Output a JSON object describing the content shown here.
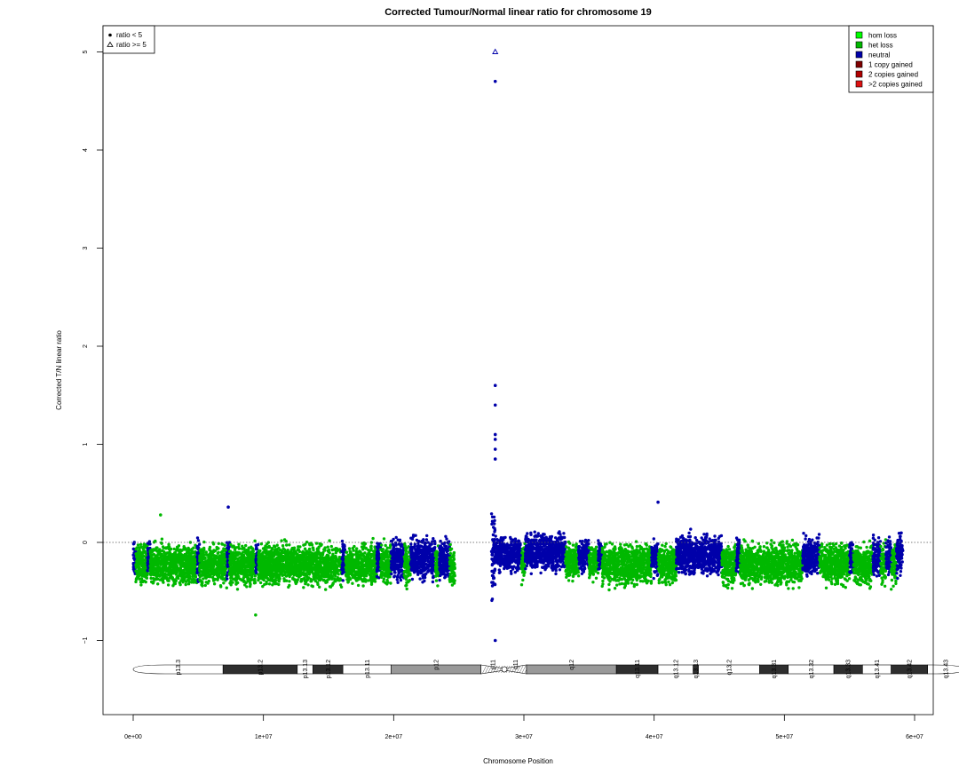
{
  "chart_data": {
    "type": "scatter",
    "title": "Corrected Tumour/Normal linear ratio for chromosome  19",
    "xlabel": "Chromosome Position",
    "ylabel": "Corrected T/N linear ratio",
    "xlim": [
      0,
      61000000
    ],
    "ylim": [
      -1.75,
      5.25
    ],
    "x_ticks": [
      0,
      10000000,
      20000000,
      30000000,
      40000000,
      50000000,
      60000000
    ],
    "x_tick_labels": [
      "0e+00",
      "1e+07",
      "2e+07",
      "3e+07",
      "4e+07",
      "5e+07",
      "6e+07"
    ],
    "y_ticks": [
      -1,
      0,
      1,
      2,
      3,
      4,
      5
    ],
    "y_tick_labels": [
      "−1",
      "0",
      "1",
      "2",
      "3",
      "4",
      "5"
    ],
    "reference_line": 0,
    "shape_legend": {
      "placement": "top-left",
      "entries": [
        {
          "label": "ratio < 5",
          "symbol": "filled-circle"
        },
        {
          "label": "ratio >= 5",
          "symbol": "open-triangle"
        }
      ]
    },
    "state_legend": {
      "placement": "top-right",
      "entries": [
        {
          "label": "hom loss",
          "color": "#00ff00"
        },
        {
          "label": "het loss",
          "color": "#00b800"
        },
        {
          "label": "neutral",
          "color": "#0000aa"
        },
        {
          "label": "1 copy gained",
          "color": "#800000"
        },
        {
          "label": "2 copies gained",
          "color": "#b00000"
        },
        {
          "label": ">2 copies gained",
          "color": "#dd1111"
        }
      ]
    },
    "segments": [
      {
        "start": 0,
        "end": 200000,
        "state": "neutral",
        "low": -0.45,
        "high": 0.08
      },
      {
        "start": 200000,
        "end": 1100000,
        "state": "het loss",
        "low": -0.5,
        "high": 0.05
      },
      {
        "start": 1100000,
        "end": 1300000,
        "state": "neutral",
        "low": -0.45,
        "high": 0.08
      },
      {
        "start": 1300000,
        "end": 4900000,
        "state": "het loss",
        "low": -0.5,
        "high": 0.05
      },
      {
        "start": 4900000,
        "end": 5100000,
        "state": "neutral",
        "low": -0.45,
        "high": 0.08
      },
      {
        "start": 5100000,
        "end": 7200000,
        "state": "het loss",
        "low": -0.5,
        "high": 0.05
      },
      {
        "start": 7200000,
        "end": 7400000,
        "state": "neutral",
        "low": -0.45,
        "high": 0.1
      },
      {
        "start": 7400000,
        "end": 9400000,
        "state": "het loss",
        "low": -0.5,
        "high": 0.05
      },
      {
        "start": 9400000,
        "end": 9600000,
        "state": "neutral",
        "low": -0.45,
        "high": 0.08
      },
      {
        "start": 9600000,
        "end": 16000000,
        "state": "het loss",
        "low": -0.5,
        "high": 0.05
      },
      {
        "start": 16000000,
        "end": 16300000,
        "state": "neutral",
        "low": -0.45,
        "high": 0.08
      },
      {
        "start": 16300000,
        "end": 18700000,
        "state": "het loss",
        "low": -0.5,
        "high": 0.05
      },
      {
        "start": 18700000,
        "end": 19000000,
        "state": "neutral",
        "low": -0.45,
        "high": 0.08
      },
      {
        "start": 19000000,
        "end": 19800000,
        "state": "het loss",
        "low": -0.5,
        "high": 0.05
      },
      {
        "start": 19800000,
        "end": 20800000,
        "state": "neutral",
        "low": -0.45,
        "high": 0.1
      },
      {
        "start": 20800000,
        "end": 21300000,
        "state": "het loss",
        "low": -0.5,
        "high": 0.05
      },
      {
        "start": 21300000,
        "end": 23200000,
        "state": "neutral",
        "low": -0.45,
        "high": 0.12
      },
      {
        "start": 23200000,
        "end": 23500000,
        "state": "het loss",
        "low": -0.5,
        "high": 0.05
      },
      {
        "start": 23500000,
        "end": 24300000,
        "state": "neutral",
        "low": -0.45,
        "high": 0.1
      },
      {
        "start": 24300000,
        "end": 24700000,
        "state": "het loss",
        "low": -0.55,
        "high": 0.0
      },
      {
        "start": 27500000,
        "end": 27800000,
        "state": "neutral",
        "low": -0.7,
        "high": 0.5
      },
      {
        "start": 27800000,
        "end": 28200000,
        "state": "neutral",
        "low": -0.35,
        "high": 0.12
      },
      {
        "start": 28200000,
        "end": 29800000,
        "state": "neutral",
        "low": -0.35,
        "high": 0.12
      },
      {
        "start": 29800000,
        "end": 30100000,
        "state": "het loss",
        "low": -0.45,
        "high": 0.05
      },
      {
        "start": 30100000,
        "end": 33200000,
        "state": "neutral",
        "low": -0.35,
        "high": 0.15
      },
      {
        "start": 33200000,
        "end": 34200000,
        "state": "het loss",
        "low": -0.45,
        "high": 0.05
      },
      {
        "start": 34200000,
        "end": 35000000,
        "state": "neutral",
        "low": -0.35,
        "high": 0.1
      },
      {
        "start": 35000000,
        "end": 35700000,
        "state": "het loss",
        "low": -0.45,
        "high": 0.05
      },
      {
        "start": 35700000,
        "end": 36000000,
        "state": "neutral",
        "low": -0.35,
        "high": 0.1
      },
      {
        "start": 36000000,
        "end": 39800000,
        "state": "het loss",
        "low": -0.5,
        "high": 0.05
      },
      {
        "start": 39800000,
        "end": 40300000,
        "state": "neutral",
        "low": -0.4,
        "high": 0.1
      },
      {
        "start": 40300000,
        "end": 41700000,
        "state": "het loss",
        "low": -0.5,
        "high": 0.05
      },
      {
        "start": 41700000,
        "end": 45200000,
        "state": "neutral",
        "low": -0.4,
        "high": 0.15
      },
      {
        "start": 45200000,
        "end": 46300000,
        "state": "het loss",
        "low": -0.5,
        "high": 0.05
      },
      {
        "start": 46300000,
        "end": 46600000,
        "state": "neutral",
        "low": -0.4,
        "high": 0.1
      },
      {
        "start": 46600000,
        "end": 51400000,
        "state": "het loss",
        "low": -0.5,
        "high": 0.05
      },
      {
        "start": 51400000,
        "end": 52700000,
        "state": "neutral",
        "low": -0.4,
        "high": 0.12
      },
      {
        "start": 52700000,
        "end": 55000000,
        "state": "het loss",
        "low": -0.5,
        "high": 0.05
      },
      {
        "start": 55000000,
        "end": 55300000,
        "state": "neutral",
        "low": -0.4,
        "high": 0.1
      },
      {
        "start": 55300000,
        "end": 56800000,
        "state": "het loss",
        "low": -0.5,
        "high": 0.05
      },
      {
        "start": 56800000,
        "end": 57400000,
        "state": "neutral",
        "low": -0.4,
        "high": 0.12
      },
      {
        "start": 57400000,
        "end": 57800000,
        "state": "het loss",
        "low": -0.5,
        "high": 0.05
      },
      {
        "start": 57800000,
        "end": 58200000,
        "state": "neutral",
        "low": -0.4,
        "high": 0.1
      },
      {
        "start": 58200000,
        "end": 58600000,
        "state": "het loss",
        "low": -0.5,
        "high": 0.05
      },
      {
        "start": 58600000,
        "end": 59100000,
        "state": "neutral",
        "low": -0.4,
        "high": 0.15
      }
    ],
    "notable_points": [
      {
        "x": 27800000,
        "y": 5.0,
        "state": "neutral",
        "symbol": "open-triangle"
      },
      {
        "x": 27800000,
        "y": 4.7,
        "state": "neutral",
        "symbol": "filled-circle"
      },
      {
        "x": 27800000,
        "y": 1.6,
        "state": "neutral",
        "symbol": "filled-circle"
      },
      {
        "x": 27800000,
        "y": 1.4,
        "state": "neutral",
        "symbol": "filled-circle"
      },
      {
        "x": 27800000,
        "y": 1.1,
        "state": "neutral",
        "symbol": "filled-circle"
      },
      {
        "x": 27800000,
        "y": 1.05,
        "state": "neutral",
        "symbol": "filled-circle"
      },
      {
        "x": 27800000,
        "y": 0.95,
        "state": "neutral",
        "symbol": "filled-circle"
      },
      {
        "x": 27800000,
        "y": 0.85,
        "state": "neutral",
        "symbol": "filled-circle"
      },
      {
        "x": 27800000,
        "y": -1.0,
        "state": "neutral",
        "symbol": "filled-circle"
      },
      {
        "x": 2100000,
        "y": 0.28,
        "state": "het loss",
        "symbol": "filled-circle"
      },
      {
        "x": 7300000,
        "y": 0.36,
        "state": "neutral",
        "symbol": "filled-circle"
      },
      {
        "x": 9400000,
        "y": -0.74,
        "state": "het loss",
        "symbol": "filled-circle"
      },
      {
        "x": 40300000,
        "y": 0.41,
        "state": "neutral",
        "symbol": "filled-circle"
      }
    ],
    "ideogram": {
      "bands": [
        {
          "name": "p13.3",
          "start": 0,
          "end": 6900000,
          "stain": "gneg"
        },
        {
          "name": "p13.2",
          "start": 6900000,
          "end": 12600000,
          "stain": "gpos75"
        },
        {
          "name": "p13.13",
          "start": 12600000,
          "end": 13800000,
          "stain": "gneg"
        },
        {
          "name": "p13.12",
          "start": 13800000,
          "end": 16100000,
          "stain": "gpos75"
        },
        {
          "name": "p13.11",
          "start": 16100000,
          "end": 19800000,
          "stain": "gneg"
        },
        {
          "name": "p12",
          "start": 19800000,
          "end": 26700000,
          "stain": "gvar"
        },
        {
          "name": "p11",
          "start": 26700000,
          "end": 28500000,
          "stain": "acen"
        },
        {
          "name": "q11",
          "start": 28500000,
          "end": 30200000,
          "stain": "acen"
        },
        {
          "name": "q12",
          "start": 30200000,
          "end": 37100000,
          "stain": "gvar"
        },
        {
          "name": "q13.11",
          "start": 37100000,
          "end": 40300000,
          "stain": "gpos75"
        },
        {
          "name": "q13.12",
          "start": 40300000,
          "end": 43000000,
          "stain": "gneg"
        },
        {
          "name": "q13.13",
          "start": 43000000,
          "end": 43400000,
          "stain": "gpos75"
        },
        {
          "name": "q13.2",
          "start": 43400000,
          "end": 48100000,
          "stain": "gneg"
        },
        {
          "name": "q13.31",
          "start": 48100000,
          "end": 50300000,
          "stain": "gpos75"
        },
        {
          "name": "q13.32",
          "start": 50300000,
          "end": 53800000,
          "stain": "gneg"
        },
        {
          "name": "q13.33",
          "start": 53800000,
          "end": 56000000,
          "stain": "gpos75"
        },
        {
          "name": "q13.41",
          "start": 56000000,
          "end": 58200000,
          "stain": "gneg"
        },
        {
          "name": "q13.42",
          "start": 58200000,
          "end": 61000000,
          "stain": "gpos75"
        },
        {
          "name": "q13.43",
          "start": 61000000,
          "end": 63800000,
          "stain": "gneg"
        }
      ]
    }
  }
}
